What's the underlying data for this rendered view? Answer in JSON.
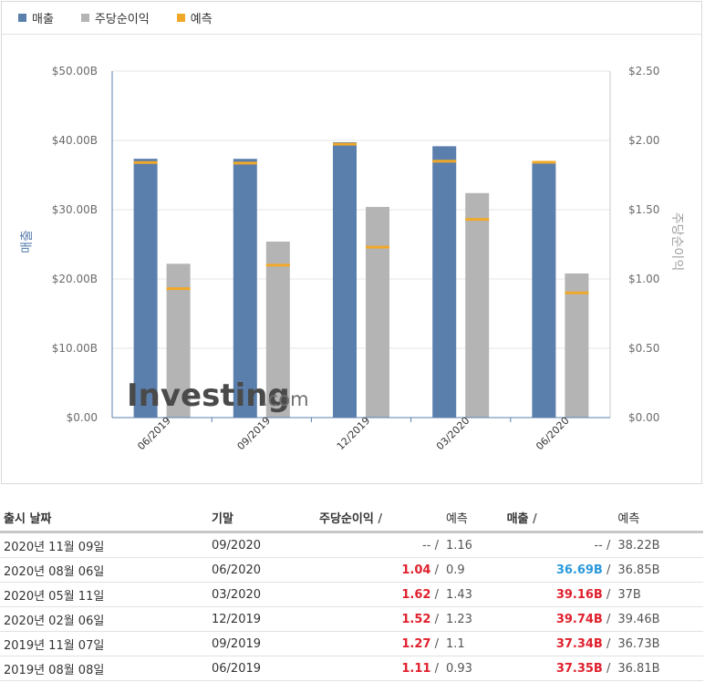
{
  "legend": {
    "items": [
      {
        "label": "매출",
        "color": "#5b7fad"
      },
      {
        "label": "주당순이익",
        "color": "#b4b4b4"
      },
      {
        "label": "예측",
        "color": "#f0a828"
      }
    ]
  },
  "watermark": {
    "brand": "Investing",
    "suffix": ".com"
  },
  "chart_data": {
    "type": "bar",
    "categories": [
      "06/2019",
      "09/2019",
      "12/2019",
      "03/2020",
      "06/2020"
    ],
    "series": [
      {
        "name": "매출",
        "axis": "left",
        "values": [
          37.35,
          37.34,
          39.74,
          39.16,
          36.69
        ],
        "forecast": [
          36.81,
          36.73,
          39.46,
          37.0,
          36.85
        ]
      },
      {
        "name": "주당순이익",
        "axis": "right",
        "values": [
          1.11,
          1.27,
          1.52,
          1.62,
          1.04
        ],
        "forecast": [
          0.93,
          1.1,
          1.23,
          1.43,
          0.9
        ]
      }
    ],
    "ylabel_left": "매출",
    "ylabel_right": "주당순이익",
    "ylim_left": [
      0,
      50
    ],
    "ylim_right": [
      0,
      2.5
    ],
    "left_ticks": [
      "$0.00",
      "$10.00B",
      "$20.00B",
      "$30.00B",
      "$40.00B",
      "$50.00B"
    ],
    "right_ticks": [
      "$0.00",
      "$0.50",
      "$1.00",
      "$1.50",
      "$2.00",
      "$2.50"
    ],
    "grid": true,
    "legend_position": "top-left"
  },
  "table": {
    "headers": {
      "date": "출시 날짜",
      "period": "기말",
      "eps": "주당순이익",
      "revenue": "매출",
      "forecast": "예측",
      "slash": "/"
    },
    "rows": [
      {
        "date": "2020년 11월 09일",
        "period": "09/2020",
        "eps": "--",
        "eps_fc": "1.16",
        "rev": "--",
        "rev_fc": "38.22B",
        "eps_color": "plain",
        "rev_color": "plain"
      },
      {
        "date": "2020년 08월 06일",
        "period": "06/2020",
        "eps": "1.04",
        "eps_fc": "0.9",
        "rev": "36.69B",
        "rev_fc": "36.85B",
        "eps_color": "red",
        "rev_color": "blue"
      },
      {
        "date": "2020년 05월 11일",
        "period": "03/2020",
        "eps": "1.62",
        "eps_fc": "1.43",
        "rev": "39.16B",
        "rev_fc": "37B",
        "eps_color": "red",
        "rev_color": "red"
      },
      {
        "date": "2020년 02월 06일",
        "period": "12/2019",
        "eps": "1.52",
        "eps_fc": "1.23",
        "rev": "39.74B",
        "rev_fc": "39.46B",
        "eps_color": "red",
        "rev_color": "red"
      },
      {
        "date": "2019년 11월 07일",
        "period": "09/2019",
        "eps": "1.27",
        "eps_fc": "1.1",
        "rev": "37.34B",
        "rev_fc": "36.73B",
        "eps_color": "red",
        "rev_color": "red"
      },
      {
        "date": "2019년 08월 08일",
        "period": "06/2019",
        "eps": "1.11",
        "eps_fc": "0.93",
        "rev": "37.35B",
        "rev_fc": "36.81B",
        "eps_color": "red",
        "rev_color": "red"
      }
    ]
  }
}
